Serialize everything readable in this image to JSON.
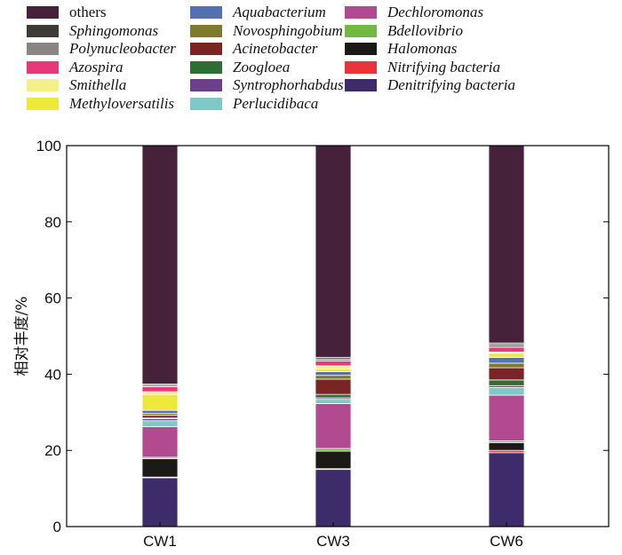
{
  "chart_data": {
    "type": "bar",
    "stacked": true,
    "categories": [
      "CW1",
      "CW3",
      "CW6"
    ],
    "ylabel": "相对丰度/%",
    "xlabel": "",
    "ylim": [
      0,
      100
    ],
    "yticks": [
      0,
      20,
      40,
      60,
      80,
      100
    ],
    "legend_position": "top",
    "grid": false,
    "series": [
      {
        "name": "others",
        "color": "#45213a",
        "values": [
          62.6,
          55.6,
          51.8
        ]
      },
      {
        "name": "Sphingomonas",
        "color": "#3d3a37",
        "values": [
          0.3,
          0.4,
          0.4
        ]
      },
      {
        "name": "Polynucleobacter",
        "color": "#8a8583",
        "values": [
          0.4,
          0.5,
          0.7
        ]
      },
      {
        "name": "Azospira",
        "color": "#e8387a",
        "values": [
          1.3,
          1.3,
          1.3
        ]
      },
      {
        "name": "Smithella",
        "color": "#f3f08a",
        "values": [
          0.7,
          0.8,
          0.3
        ]
      },
      {
        "name": "Methyloversatilis",
        "color": "#ede93a",
        "values": [
          4.2,
          0.7,
          1.1
        ]
      },
      {
        "name": "Aquabacterium",
        "color": "#5470b0",
        "values": [
          0.8,
          1.0,
          1.5
        ]
      },
      {
        "name": "Novosphingobium",
        "color": "#7f7a2e",
        "values": [
          0.5,
          1.0,
          1.2
        ]
      },
      {
        "name": "Acinetobacter",
        "color": "#7a2424",
        "values": [
          0.7,
          4.0,
          3.2
        ]
      },
      {
        "name": "Zoogloea",
        "color": "#2e6e35",
        "values": [
          0.2,
          0.9,
          1.5
        ]
      },
      {
        "name": "Syntrophorhabdus",
        "color": "#6c3f8a",
        "values": [
          0.5,
          0.4,
          0.5
        ]
      },
      {
        "name": "Perlucidibaca",
        "color": "#7fc8c8",
        "values": [
          1.6,
          1.1,
          2.0
        ]
      },
      {
        "name": "Dechloromonas",
        "color": "#b14a8f",
        "values": [
          8.0,
          11.8,
          12.0
        ]
      },
      {
        "name": "Bdellovibrio",
        "color": "#72b844",
        "values": [
          0.4,
          0.7,
          0.5
        ]
      },
      {
        "name": "Halomonas",
        "color": "#1b1a17",
        "values": [
          4.8,
          4.6,
          2.0
        ]
      },
      {
        "name": "Nitrifying bacteria",
        "color": "#e8343a",
        "values": [
          0.2,
          0.2,
          0.6
        ]
      },
      {
        "name": "Denitrifying bacteria",
        "color": "#3d2b6a",
        "values": [
          12.8,
          15.0,
          19.4
        ]
      }
    ]
  }
}
